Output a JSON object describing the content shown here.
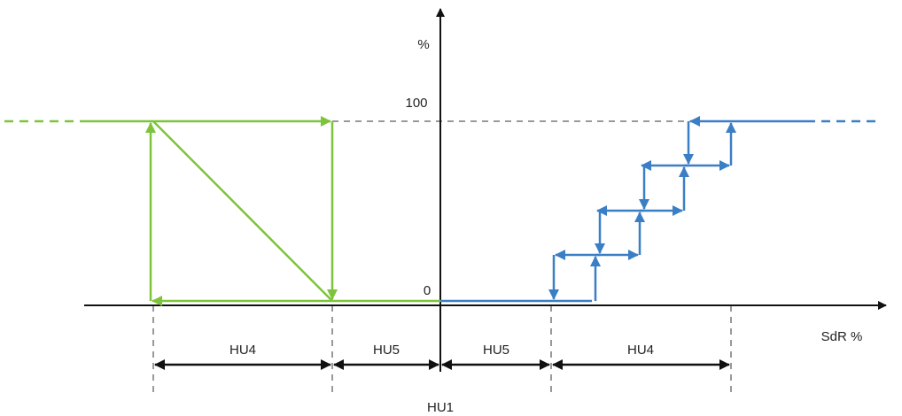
{
  "axis": {
    "y_label": "%",
    "y_top": "100",
    "y_bottom": "0",
    "x_label": "SdR %",
    "origin": "HU1"
  },
  "bands": [
    "HU4",
    "HU5",
    "HU5",
    "HU4"
  ]
}
